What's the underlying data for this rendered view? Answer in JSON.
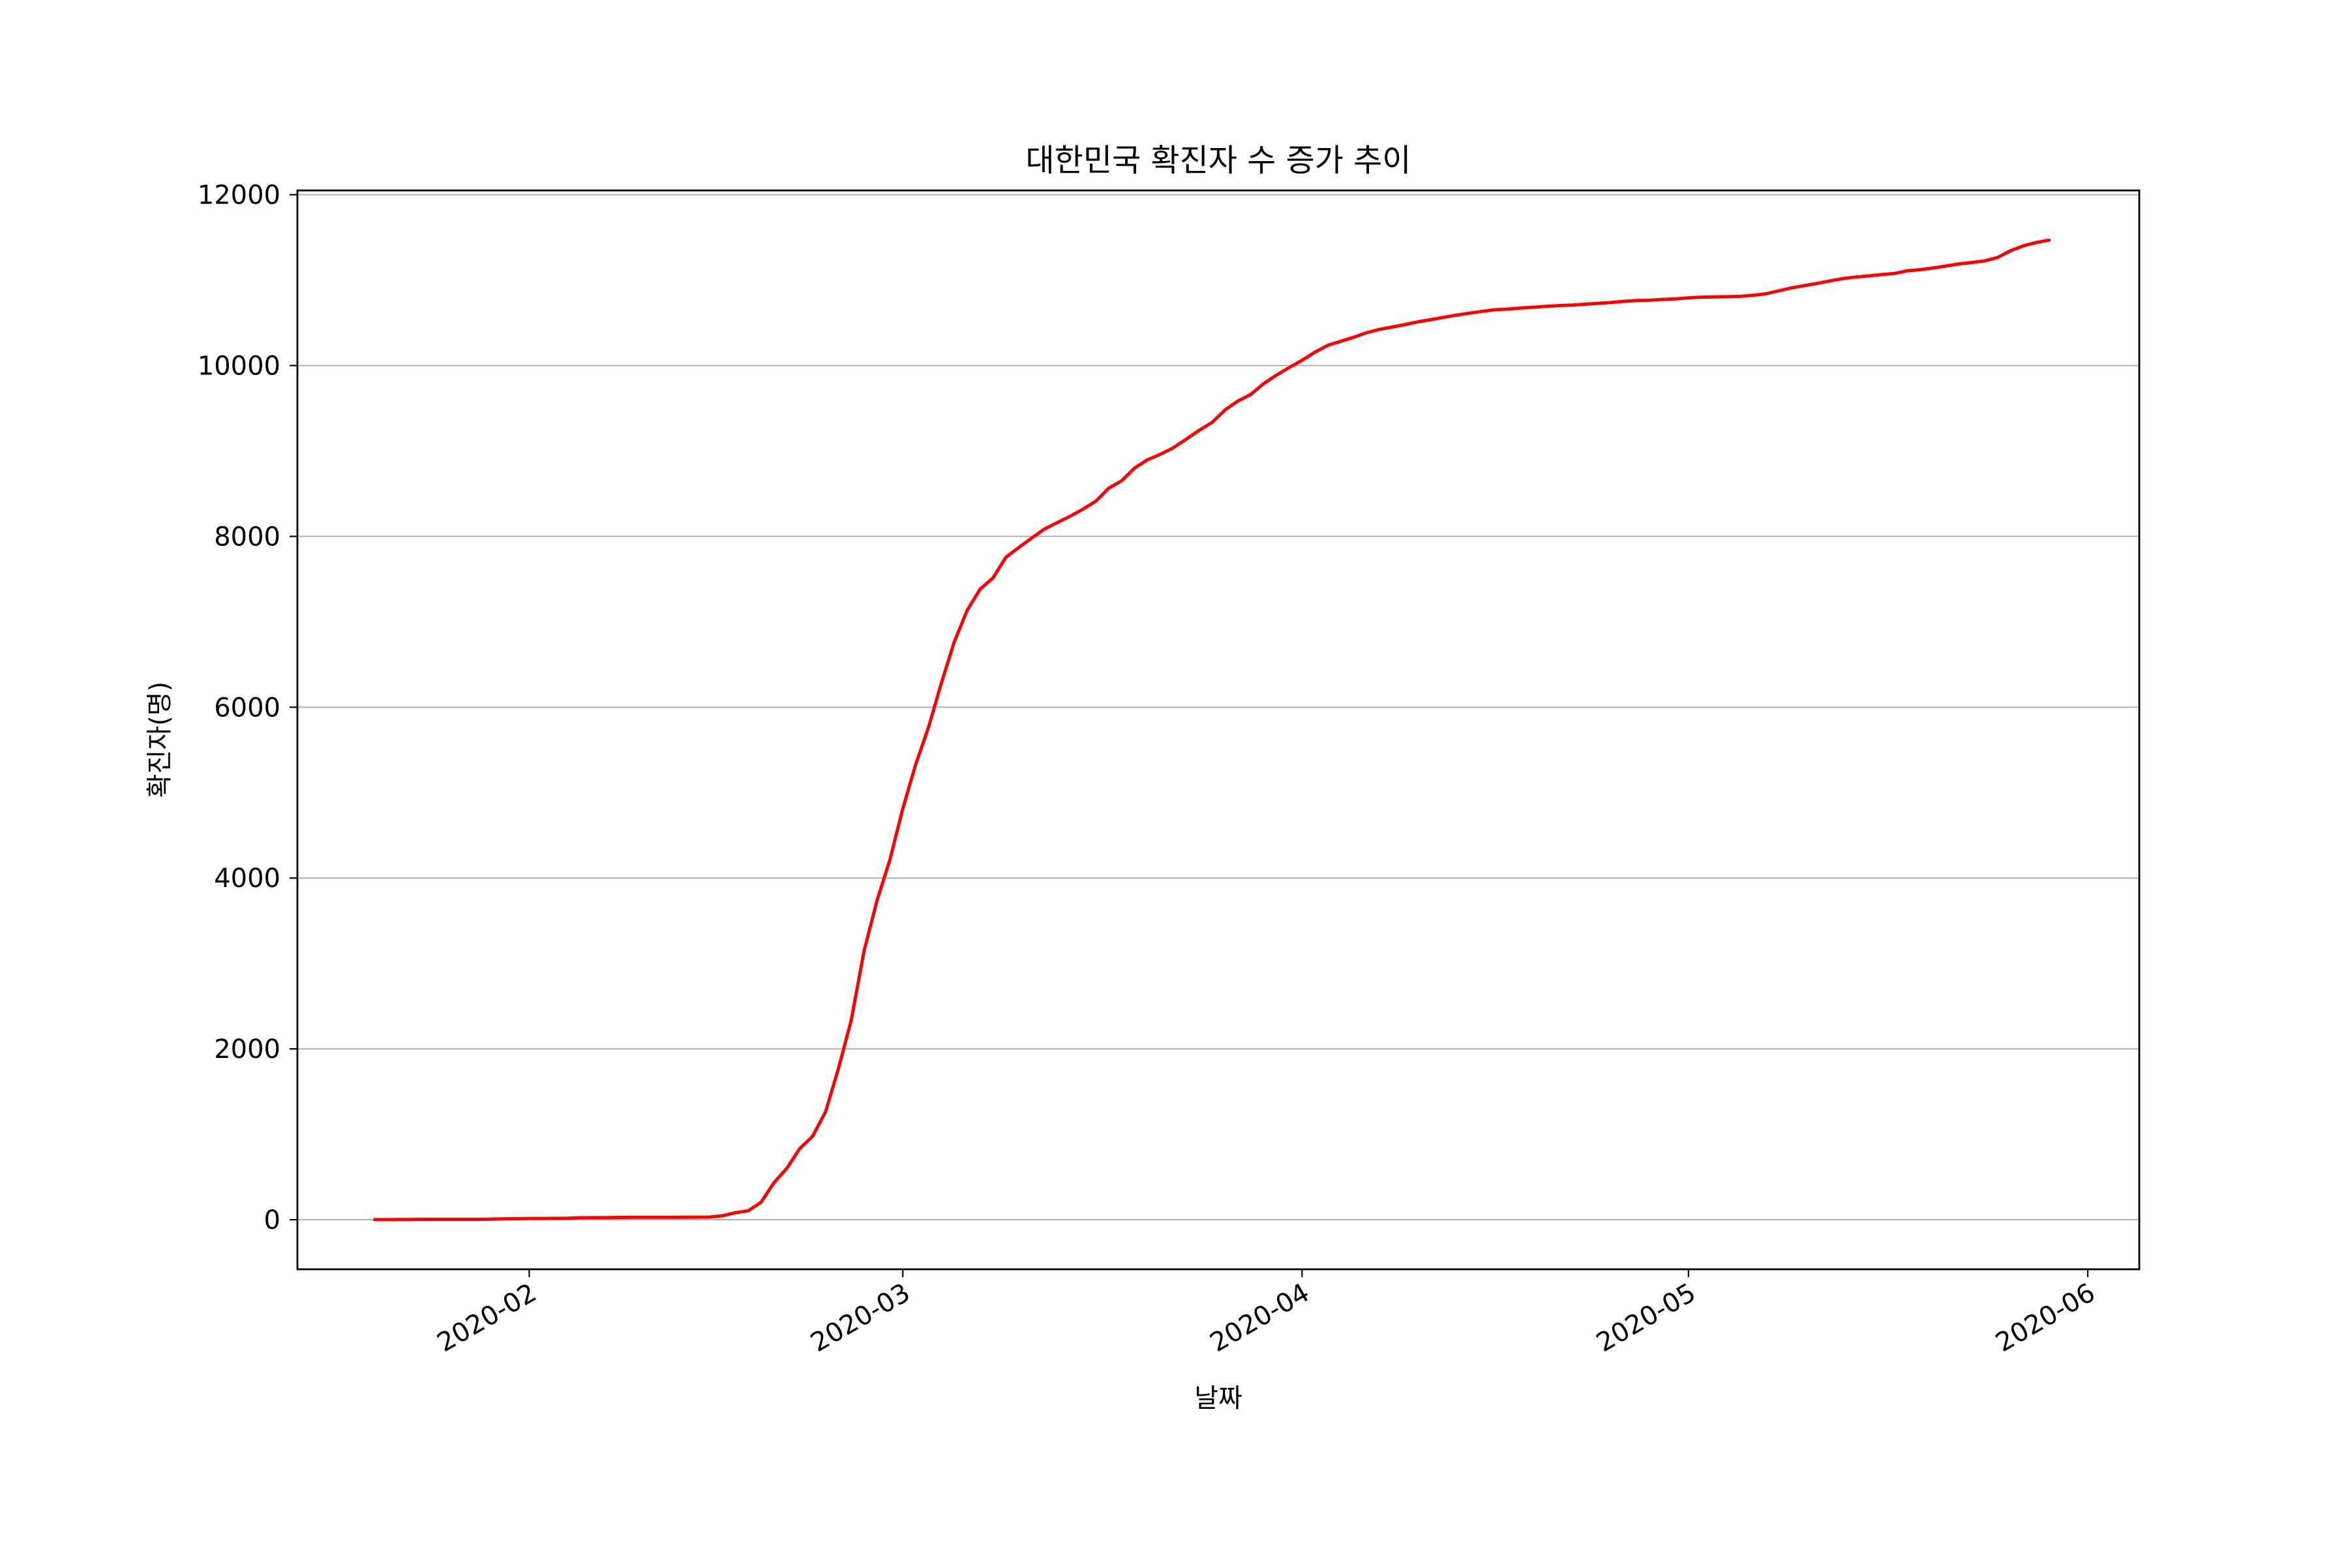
{
  "chart_data": {
    "type": "line",
    "title": "대한민국 확진자 수 증가 추이",
    "xlabel": "날짜",
    "ylabel": "확진자(명)",
    "x_start": "2020-01-20",
    "x_end": "2020-05-31",
    "xlim": [
      "2020-01-14",
      "2020-06-05"
    ],
    "ylim": [
      -580,
      12050
    ],
    "y_ticks": [
      0,
      2000,
      4000,
      6000,
      8000,
      10000,
      12000
    ],
    "x_ticks": [
      {
        "date": "2020-02-01",
        "label": "2020-02"
      },
      {
        "date": "2020-03-01",
        "label": "2020-03"
      },
      {
        "date": "2020-04-01",
        "label": "2020-04"
      },
      {
        "date": "2020-05-01",
        "label": "2020-05"
      },
      {
        "date": "2020-06-01",
        "label": "2020-06"
      }
    ],
    "grid": "y-axis",
    "series": [
      {
        "color": "#ff0000",
        "values": [
          1,
          1,
          2,
          3,
          4,
          4,
          4,
          4,
          4,
          6,
          11,
          12,
          15,
          15,
          16,
          18,
          23,
          24,
          24,
          27,
          28,
          28,
          28,
          28,
          29,
          30,
          31,
          46,
          82,
          104,
          204,
          433,
          602,
          833,
          977,
          1261,
          1766,
          2337,
          3150,
          3736,
          4212,
          4812,
          5328,
          5766,
          6284,
          6767,
          7134,
          7382,
          7513,
          7755,
          7869,
          7979,
          8086,
          8162,
          8236,
          8320,
          8413,
          8565,
          8652,
          8799,
          8897,
          8961,
          9037,
          9137,
          9241,
          9332,
          9478,
          9583,
          9661,
          9786,
          9887,
          9976,
          10062,
          10156,
          10237,
          10284,
          10331,
          10384,
          10423,
          10450,
          10480,
          10512,
          10537,
          10564,
          10591,
          10613,
          10635,
          10653,
          10661,
          10674,
          10683,
          10694,
          10702,
          10708,
          10718,
          10728,
          10738,
          10752,
          10761,
          10765,
          10774,
          10780,
          10793,
          10801,
          10804,
          10806,
          10810,
          10822,
          10840,
          10874,
          10909,
          10936,
          10962,
          10991,
          11018,
          11037,
          11050,
          11065,
          11078,
          11110,
          11122,
          11142,
          11165,
          11190,
          11206,
          11225,
          11265,
          11344,
          11402,
          11441,
          11468
        ]
      }
    ]
  }
}
